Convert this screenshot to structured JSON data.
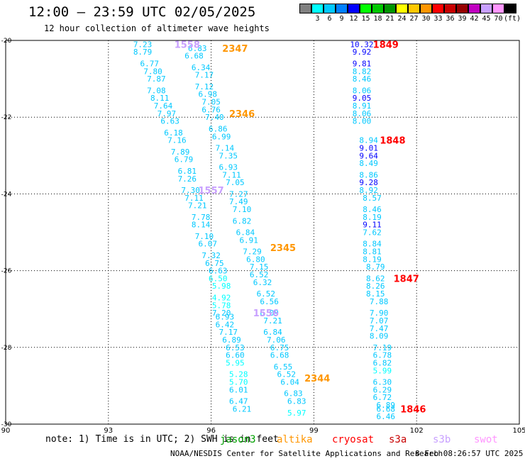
{
  "header": {
    "title": "12:00 — 23:59 UTC 02/05/2025",
    "subtitle": "12 hour collection of altimeter wave heights"
  },
  "colorbar": {
    "unit": "(ft)",
    "entries": [
      {
        "label": "",
        "color": "#808080"
      },
      {
        "label": "3",
        "color": "#00ffff"
      },
      {
        "label": "6",
        "color": "#00c8ff"
      },
      {
        "label": "9",
        "color": "#0080ff"
      },
      {
        "label": "12",
        "color": "#0000ff"
      },
      {
        "label": "15",
        "color": "#00ff00"
      },
      {
        "label": "18",
        "color": "#00c800"
      },
      {
        "label": "21",
        "color": "#009600"
      },
      {
        "label": "24",
        "color": "#ffff00"
      },
      {
        "label": "27",
        "color": "#ffc800"
      },
      {
        "label": "30",
        "color": "#ff9600"
      },
      {
        "label": "33",
        "color": "#ff0000"
      },
      {
        "label": "36",
        "color": "#c80000"
      },
      {
        "label": "39",
        "color": "#960000"
      },
      {
        "label": "42",
        "color": "#c000c0"
      },
      {
        "label": "45",
        "color": "#c8a0ff"
      },
      {
        "label": "70",
        "color": "#ff96ff"
      },
      {
        "label": "",
        "color": "#000000"
      }
    ]
  },
  "footer": {
    "note": "note:  1) Time is in UTC; 2) SWH is in feet",
    "credit": "NOAA/NESDIS Center for Satellite Applications and Research",
    "timestamp": "8 Feb 08:26:57 UTC 2025",
    "satellites": [
      {
        "name": "jason3",
        "color": "#00a000"
      },
      {
        "name": "altika",
        "color": "#ff9600"
      },
      {
        "name": "cryosat",
        "color": "#ff0000"
      },
      {
        "name": "s3a",
        "color": "#c80000"
      },
      {
        "name": "s3b",
        "color": "#c8a0ff"
      },
      {
        "name": "swot",
        "color": "#ff96ff"
      }
    ]
  },
  "chart_data": {
    "type": "scatter",
    "xlim": [
      90,
      105
    ],
    "ylim": [
      -30,
      -20
    ],
    "xticks": [
      "90",
      "93",
      "96",
      "99",
      "102",
      "105"
    ],
    "yticks": [
      "-20",
      "-22",
      "-24",
      "-26",
      "-28",
      "-30"
    ],
    "grid": true,
    "colors": {
      "cyan": "#00c8ff",
      "light_cyan": "#00ffff",
      "blue": "#0000ff",
      "orange": "#ff9600",
      "red": "#ff0000",
      "lavender": "#c8a0ff",
      "gray": "#808080"
    },
    "passes": [
      {
        "label": "2347",
        "label_color": "#ff9600",
        "label_pos": [
          96.7,
          -20.2
        ],
        "points": [
          [
            94.0,
            -20.1,
            "7.23",
            "cyan"
          ],
          [
            95.6,
            -20.2,
            "6.83",
            "cyan"
          ],
          [
            94.0,
            -20.3,
            "8.79",
            "cyan"
          ],
          [
            95.5,
            -20.4,
            "6.68",
            "cyan"
          ],
          [
            94.2,
            -20.6,
            "6.77",
            "cyan"
          ],
          [
            95.7,
            -20.7,
            "6.34",
            "cyan"
          ],
          [
            94.3,
            -20.8,
            "7.80",
            "cyan"
          ],
          [
            95.8,
            -20.9,
            "7.17",
            "cyan"
          ],
          [
            94.4,
            -21.0,
            "7.87",
            "cyan"
          ],
          [
            95.8,
            -21.2,
            "7.12",
            "cyan"
          ],
          [
            94.4,
            -21.3,
            "7.08",
            "cyan"
          ],
          [
            95.9,
            -21.4,
            "6.98",
            "cyan"
          ],
          [
            94.5,
            -21.5,
            "8.11",
            "cyan"
          ],
          [
            96.0,
            -21.6,
            "7.05",
            "cyan"
          ],
          [
            94.6,
            -21.7,
            "7.64",
            "cyan"
          ],
          [
            96.0,
            -21.8,
            "6.76",
            "cyan"
          ],
          [
            94.7,
            -21.9,
            "7.97",
            "cyan"
          ],
          [
            96.1,
            -22.0,
            "7.40",
            "cyan"
          ],
          [
            94.8,
            -22.1,
            "6.63",
            "cyan"
          ],
          [
            96.2,
            -22.3,
            "6.86",
            "cyan"
          ],
          [
            94.9,
            -22.4,
            "6.18",
            "cyan"
          ],
          [
            96.3,
            -22.5,
            "6.99",
            "cyan"
          ],
          [
            95.0,
            -22.6,
            "7.16",
            "cyan"
          ],
          [
            96.4,
            -22.8,
            "7.14",
            "cyan"
          ],
          [
            95.1,
            -22.9,
            "7.89",
            "cyan"
          ],
          [
            96.5,
            -23.0,
            "7.35",
            "cyan"
          ],
          [
            95.2,
            -23.1,
            "6.79",
            "cyan"
          ],
          [
            96.5,
            -23.3,
            "6.93",
            "cyan"
          ],
          [
            95.3,
            -23.4,
            "6.81",
            "cyan"
          ],
          [
            96.6,
            -23.5,
            "7.11",
            "cyan"
          ],
          [
            95.3,
            -23.6,
            "7.26",
            "cyan"
          ],
          [
            96.7,
            -23.7,
            "7.05",
            "cyan"
          ],
          [
            95.4,
            -23.9,
            "7.30",
            "cyan"
          ],
          [
            96.8,
            -24.0,
            "7.27",
            "cyan"
          ],
          [
            95.5,
            -24.1,
            "7.11",
            "cyan"
          ],
          [
            96.8,
            -24.2,
            "7.49",
            "cyan"
          ],
          [
            95.6,
            -24.3,
            "7.21",
            "cyan"
          ],
          [
            96.9,
            -24.4,
            "7.10",
            "cyan"
          ],
          [
            95.7,
            -24.6,
            "7.78",
            "cyan"
          ],
          [
            96.9,
            -24.7,
            "6.82",
            "cyan"
          ],
          [
            95.7,
            -24.8,
            "8.14",
            "cyan"
          ],
          [
            97.0,
            -25.0,
            "6.84",
            "cyan"
          ],
          [
            95.8,
            -25.1,
            "7.10",
            "cyan"
          ],
          [
            97.1,
            -25.2,
            "6.91",
            "cyan"
          ],
          [
            95.9,
            -25.3,
            "6.07",
            "cyan"
          ],
          [
            97.2,
            -25.5,
            "7.29",
            "cyan"
          ],
          [
            96.0,
            -25.6,
            "7.32",
            "cyan"
          ],
          [
            97.3,
            -25.7,
            "6.80",
            "cyan"
          ],
          [
            96.1,
            -25.8,
            "6.75",
            "cyan"
          ],
          [
            97.4,
            -25.9,
            "7.15",
            "cyan"
          ],
          [
            96.2,
            -26.0,
            "6.63",
            "cyan"
          ],
          [
            97.4,
            -26.1,
            "6.52",
            "cyan"
          ],
          [
            96.2,
            -26.2,
            "6.50",
            "light_cyan"
          ],
          [
            97.5,
            -26.3,
            "6.32",
            "cyan"
          ],
          [
            96.3,
            -26.4,
            "5.98",
            "light_cyan"
          ],
          [
            97.6,
            -26.6,
            "6.52",
            "cyan"
          ],
          [
            96.3,
            -26.7,
            "4.92",
            "light_cyan"
          ],
          [
            97.7,
            -26.8,
            "6.56",
            "cyan"
          ],
          [
            96.3,
            -26.9,
            "5.78",
            "light_cyan"
          ],
          [
            97.7,
            -27.1,
            "6.09",
            "cyan"
          ],
          [
            96.3,
            -27.1,
            "7.20",
            "cyan"
          ],
          [
            97.8,
            -27.3,
            "7.21",
            "cyan"
          ],
          [
            96.4,
            -27.2,
            "6.93",
            "cyan"
          ],
          [
            97.8,
            -27.6,
            "6.84",
            "cyan"
          ],
          [
            96.4,
            -27.4,
            "6.42",
            "cyan"
          ],
          [
            97.9,
            -27.8,
            "7.06",
            "cyan"
          ],
          [
            96.5,
            -27.6,
            "7.17",
            "cyan"
          ],
          [
            98.0,
            -28.0,
            "6.75",
            "cyan"
          ],
          [
            96.6,
            -27.8,
            "6.89",
            "cyan"
          ],
          [
            98.0,
            -28.2,
            "6.68",
            "cyan"
          ],
          [
            96.7,
            -28.0,
            "6.53",
            "cyan"
          ],
          [
            98.1,
            -28.5,
            "6.55",
            "cyan"
          ],
          [
            96.7,
            -28.2,
            "6.60",
            "cyan"
          ],
          [
            98.2,
            -28.7,
            "6.52",
            "cyan"
          ],
          [
            96.7,
            -28.4,
            "5.95",
            "light_cyan"
          ],
          [
            98.3,
            -28.9,
            "6.04",
            "cyan"
          ],
          [
            96.8,
            -28.7,
            "5.28",
            "light_cyan"
          ],
          [
            98.4,
            -29.2,
            "6.83",
            "cyan"
          ],
          [
            96.8,
            -28.9,
            "5.70",
            "light_cyan"
          ],
          [
            98.5,
            -29.4,
            "6.83",
            "cyan"
          ],
          [
            96.8,
            -29.1,
            "6.01",
            "cyan"
          ],
          [
            98.5,
            -29.7,
            "5.97",
            "light_cyan"
          ],
          [
            96.8,
            -29.4,
            "6.47",
            "cyan"
          ],
          [
            96.9,
            -29.6,
            "6.21",
            "cyan"
          ]
        ]
      },
      {
        "label": "2346",
        "label_color": "#ff9600",
        "label_pos": [
          96.9,
          -21.9
        ],
        "points": []
      },
      {
        "label": "2345",
        "label_color": "#ff9600",
        "label_pos": [
          98.1,
          -25.4
        ],
        "points": []
      },
      {
        "label": "2344",
        "label_color": "#ff9600",
        "label_pos": [
          99.1,
          -28.8
        ],
        "points": []
      },
      {
        "label": "1558",
        "label_color": "#c8a0ff",
        "label_pos": [
          95.3,
          -20.1
        ],
        "points": []
      },
      {
        "label": "1557",
        "label_color": "#c8a0ff",
        "label_pos": [
          96.0,
          -23.9
        ],
        "points": []
      },
      {
        "label": "1556",
        "label_color": "#c8a0ff",
        "label_pos": [
          97.6,
          -27.1
        ],
        "points": []
      },
      {
        "label": "1849",
        "label_color": "#ff0000",
        "label_pos": [
          101.1,
          -20.1
        ],
        "points": [
          [
            100.4,
            -20.1,
            "10.32",
            "blue"
          ],
          [
            100.4,
            -20.3,
            "9.92",
            "blue"
          ],
          [
            100.4,
            -20.6,
            "9.81",
            "blue"
          ],
          [
            100.4,
            -20.8,
            "8.82",
            "cyan"
          ],
          [
            100.4,
            -21.0,
            "8.46",
            "cyan"
          ],
          [
            100.4,
            -21.3,
            "8.06",
            "cyan"
          ],
          [
            100.4,
            -21.5,
            "9.05",
            "blue"
          ],
          [
            100.4,
            -21.7,
            "8.91",
            "cyan"
          ],
          [
            100.4,
            -21.9,
            "8.06",
            "cyan"
          ],
          [
            100.4,
            -22.1,
            "8.00",
            "cyan"
          ]
        ]
      },
      {
        "label": "1848",
        "label_color": "#ff0000",
        "label_pos": [
          101.3,
          -22.6
        ],
        "points": [
          [
            100.6,
            -22.6,
            "8.94",
            "cyan"
          ],
          [
            100.6,
            -22.8,
            "9.01",
            "blue"
          ],
          [
            100.6,
            -23.0,
            "9.64",
            "blue"
          ],
          [
            100.6,
            -23.2,
            "8.49",
            "cyan"
          ],
          [
            100.6,
            -23.5,
            "8.86",
            "cyan"
          ],
          [
            100.6,
            -23.7,
            "9.28",
            "blue"
          ],
          [
            100.6,
            -23.9,
            "8.92",
            "cyan"
          ],
          [
            100.7,
            -24.1,
            "8.57",
            "cyan"
          ],
          [
            100.7,
            -24.4,
            "8.46",
            "cyan"
          ],
          [
            100.7,
            -24.6,
            "8.19",
            "cyan"
          ],
          [
            100.7,
            -24.8,
            "9.11",
            "blue"
          ],
          [
            100.7,
            -25.0,
            "7.62",
            "cyan"
          ],
          [
            100.7,
            -25.3,
            "8.84",
            "cyan"
          ],
          [
            100.7,
            -25.5,
            "8.81",
            "cyan"
          ],
          [
            100.7,
            -25.7,
            "8.19",
            "cyan"
          ],
          [
            100.8,
            -25.9,
            "8.79",
            "cyan"
          ]
        ]
      },
      {
        "label": "1847",
        "label_color": "#ff0000",
        "label_pos": [
          101.7,
          -26.2
        ],
        "points": [
          [
            100.8,
            -26.2,
            "8.62",
            "cyan"
          ],
          [
            100.8,
            -26.4,
            "8.26",
            "cyan"
          ],
          [
            100.8,
            -26.6,
            "8.15",
            "cyan"
          ],
          [
            100.9,
            -26.8,
            "7.88",
            "cyan"
          ],
          [
            100.9,
            -27.1,
            "7.90",
            "cyan"
          ],
          [
            100.9,
            -27.3,
            "7.07",
            "cyan"
          ],
          [
            100.9,
            -27.5,
            "7.47",
            "cyan"
          ],
          [
            100.9,
            -27.7,
            "8.09",
            "cyan"
          ],
          [
            101.0,
            -28.0,
            "7.19",
            "cyan"
          ],
          [
            101.0,
            -28.2,
            "6.78",
            "cyan"
          ],
          [
            101.0,
            -28.4,
            "6.82",
            "cyan"
          ],
          [
            101.0,
            -28.6,
            "5.99",
            "light_cyan"
          ],
          [
            101.0,
            -28.9,
            "6.30",
            "cyan"
          ],
          [
            101.0,
            -29.1,
            "6.29",
            "cyan"
          ],
          [
            101.0,
            -29.3,
            "6.72",
            "cyan"
          ],
          [
            101.1,
            -29.5,
            "6.89",
            "cyan"
          ],
          [
            101.1,
            -29.6,
            "6.68",
            "cyan"
          ],
          [
            101.1,
            -29.8,
            "6.46",
            "cyan"
          ]
        ]
      },
      {
        "label": "1846",
        "label_color": "#ff0000",
        "label_pos": [
          101.9,
          -29.6
        ],
        "points": []
      }
    ]
  }
}
